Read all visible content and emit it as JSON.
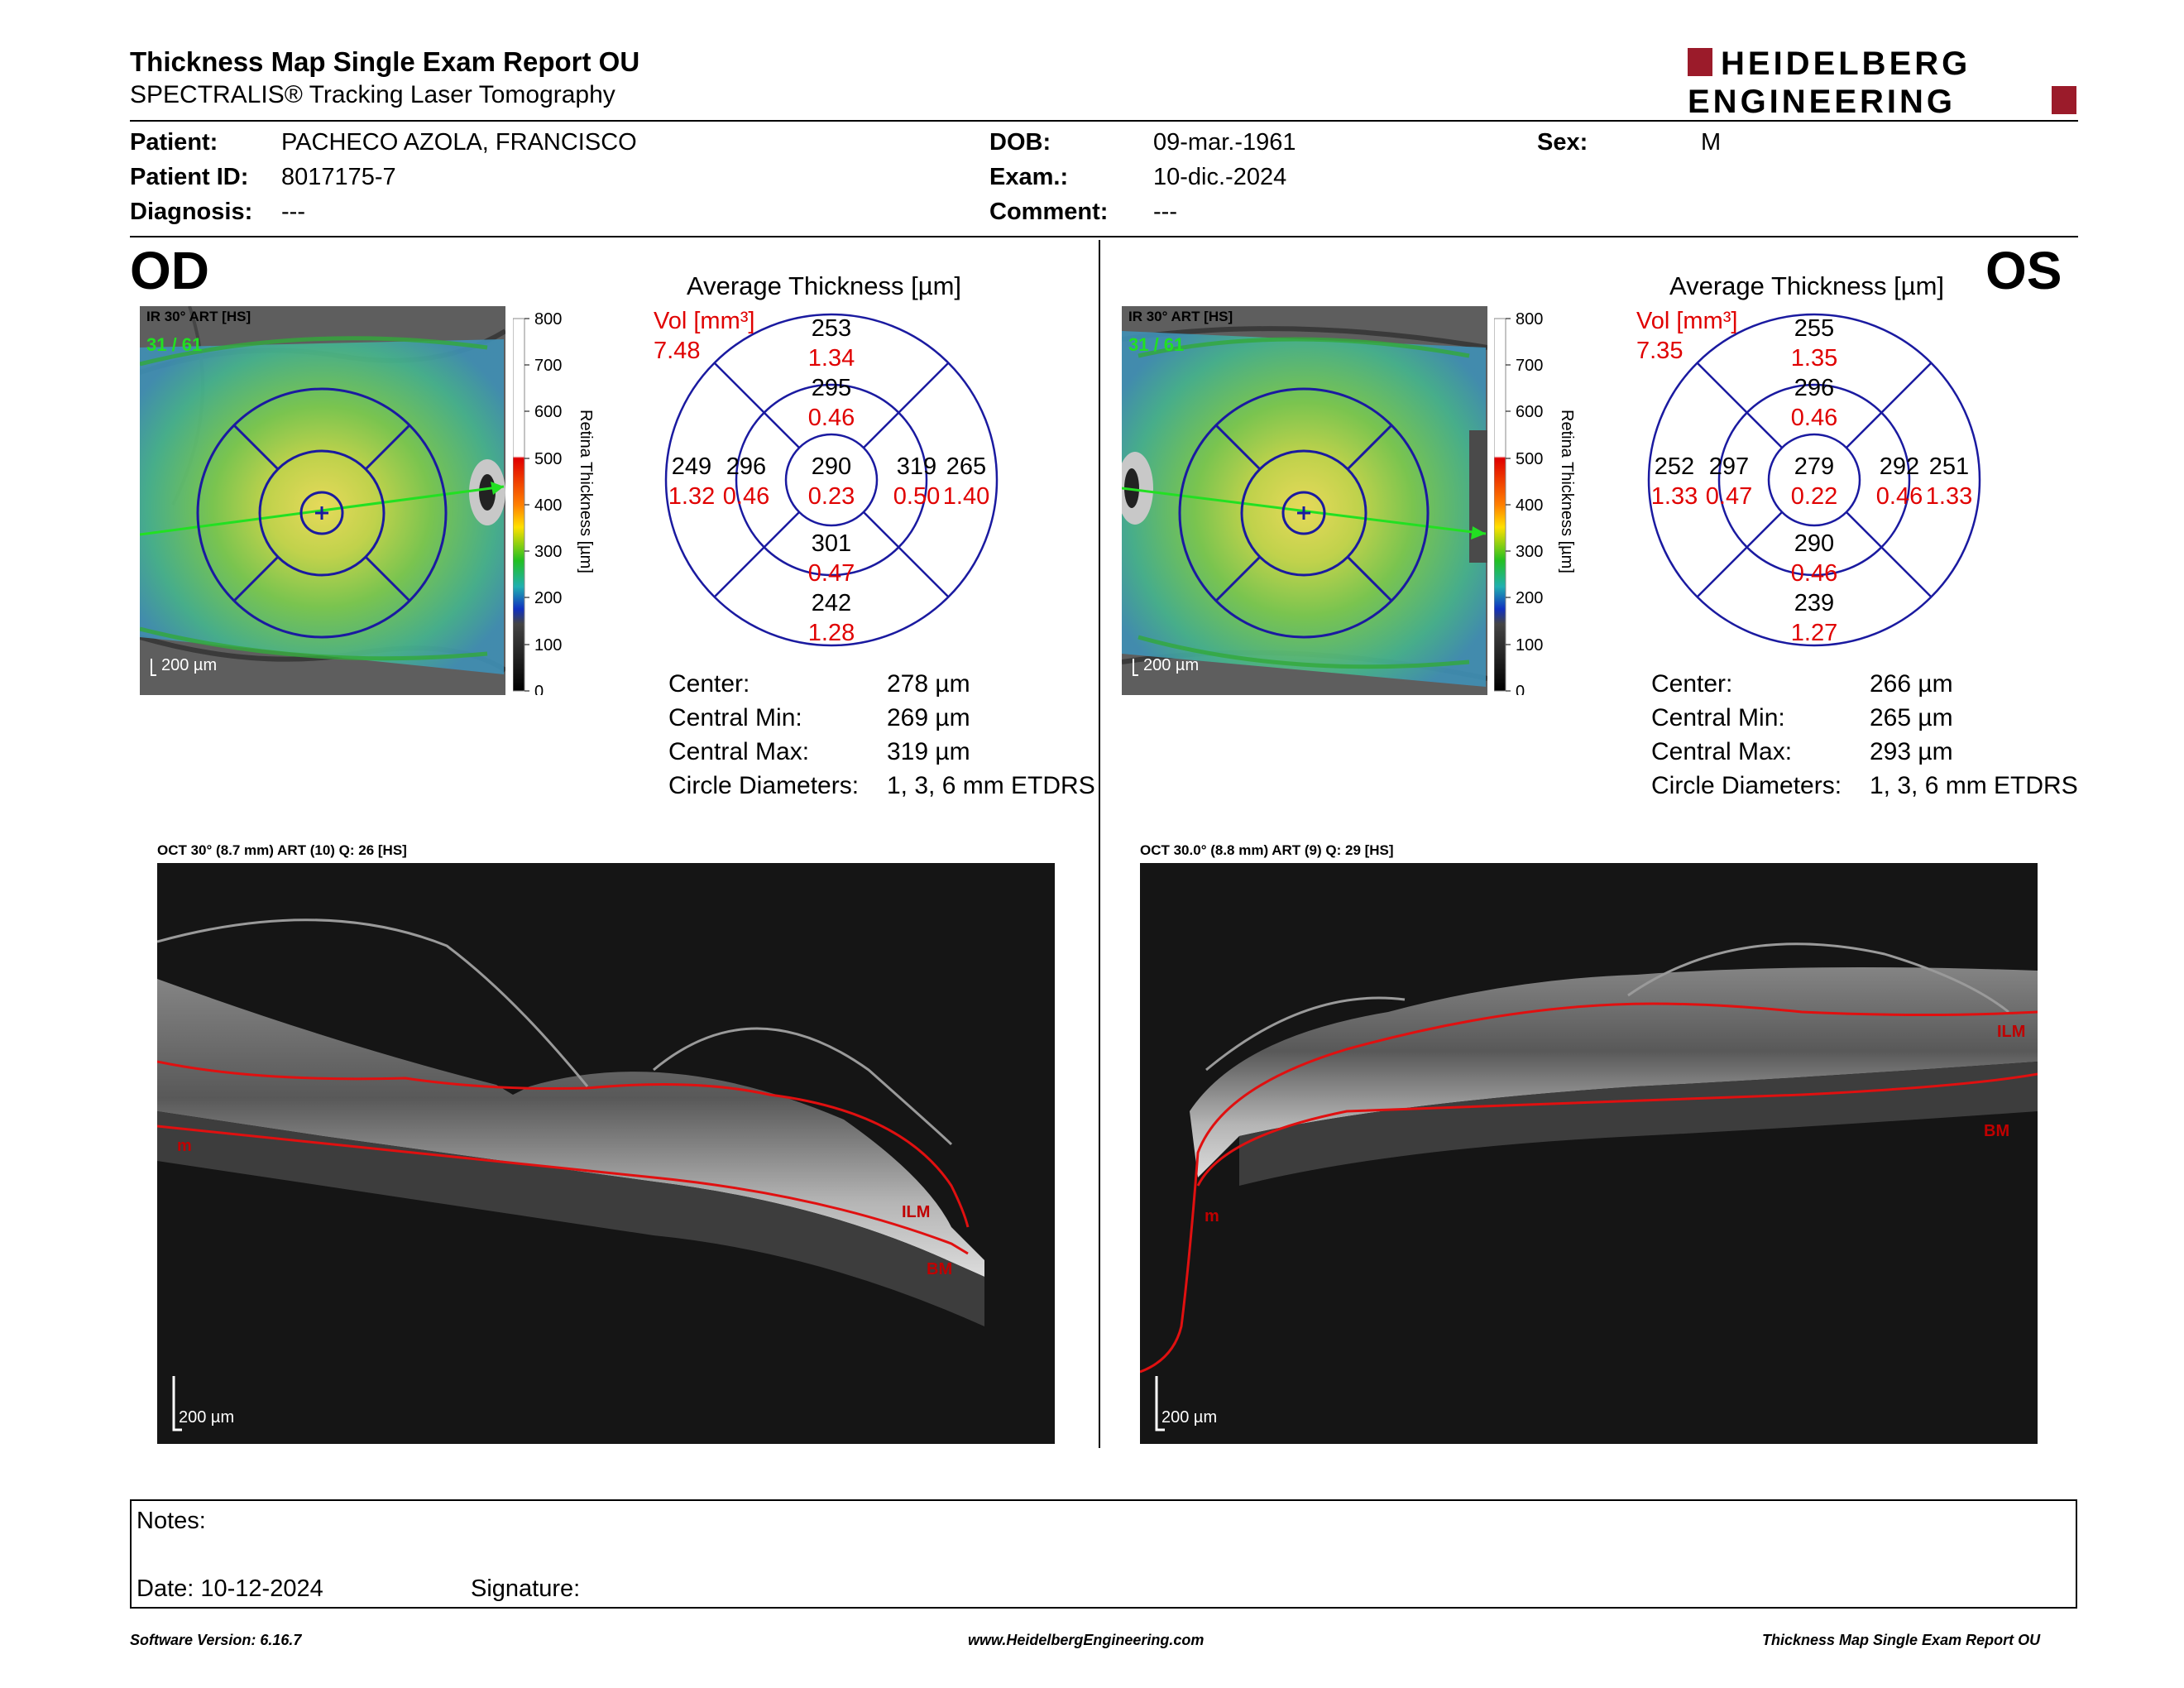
{
  "header": {
    "title": "Thickness Map Single Exam Report OU",
    "subtitle": "SPECTRALIS® Tracking Laser Tomography",
    "logo_line1": "HEIDELBERG",
    "logo_line2": "ENGINEERING"
  },
  "patient": {
    "patient_label": "Patient:",
    "patient_value": "PACHECO AZOLA, FRANCISCO",
    "id_label": "Patient ID:",
    "id_value": "8017175-7",
    "diagnosis_label": "Diagnosis:",
    "diagnosis_value": "---",
    "dob_label": "DOB:",
    "dob_value": "09-mar.-1961",
    "exam_label": "Exam.:",
    "exam_value": "10-dic.-2024",
    "comment_label": "Comment:",
    "comment_value": "---",
    "sex_label": "Sex:",
    "sex_value": "M"
  },
  "colorbar": {
    "ticks": [
      "800",
      "700",
      "600",
      "500",
      "400",
      "300",
      "200",
      "100",
      "0"
    ],
    "label": "Retina Thickness [µm]"
  },
  "od": {
    "eye": "OD",
    "ir_label": "IR 30° ART [HS]",
    "ir_counter": "31 / 61",
    "scale_label": "200 µm",
    "avg_title": "Average Thickness [µm]",
    "vol_label": "Vol [mm³]",
    "vol_value": "7.48",
    "grid": {
      "center": [
        "290",
        "0.23"
      ],
      "inner_top": [
        "295",
        "0.46"
      ],
      "inner_bottom": [
        "301",
        "0.47"
      ],
      "inner_left": [
        "296",
        "0.46"
      ],
      "inner_right": [
        "319",
        "0.50"
      ],
      "outer_top": [
        "253",
        "1.34"
      ],
      "outer_bottom": [
        "242",
        "1.28"
      ],
      "outer_left": [
        "249",
        "1.32"
      ],
      "outer_right": [
        "265",
        "1.40"
      ]
    },
    "stats": {
      "center_label": "Center:",
      "center_value": "278 µm",
      "min_label": "Central Min:",
      "min_value": "269 µm",
      "max_label": "Central Max:",
      "max_value": "319 µm",
      "diam_label": "Circle Diameters:",
      "diam_value": "1, 3, 6 mm ETDRS"
    },
    "oct_label": "OCT 30° (8.7 mm) ART (10) Q: 26 [HS]",
    "oct_scale": "200 µm",
    "ilm_label": "ILM",
    "bm_label": "BM",
    "m_label": "m"
  },
  "os": {
    "eye": "OS",
    "ir_label": "IR 30° ART [HS]",
    "ir_counter": "31 / 61",
    "scale_label": "200 µm",
    "avg_title": "Average Thickness [µm]",
    "vol_label": "Vol [mm³]",
    "vol_value": "7.35",
    "grid": {
      "center": [
        "279",
        "0.22"
      ],
      "inner_top": [
        "296",
        "0.46"
      ],
      "inner_bottom": [
        "290",
        "0.46"
      ],
      "inner_left": [
        "297",
        "0.47"
      ],
      "inner_right": [
        "292",
        "0.46"
      ],
      "outer_top": [
        "255",
        "1.35"
      ],
      "outer_bottom": [
        "239",
        "1.27"
      ],
      "outer_left": [
        "252",
        "1.33"
      ],
      "outer_right": [
        "251",
        "1.33"
      ]
    },
    "stats": {
      "center_label": "Center:",
      "center_value": "266 µm",
      "min_label": "Central Min:",
      "min_value": "265 µm",
      "max_label": "Central Max:",
      "max_value": "293 µm",
      "diam_label": "Circle Diameters:",
      "diam_value": "1, 3, 6 mm ETDRS"
    },
    "oct_label": "OCT 30.0° (8.8 mm) ART (9) Q: 29 [HS]",
    "oct_scale": "200 µm",
    "ilm_label": "ILM",
    "bm_label": "BM",
    "m_label": "m"
  },
  "notes": {
    "notes_label": "Notes:",
    "date_label": "Date: 10-12-2024",
    "signature_label": "Signature:"
  },
  "footer": {
    "left": "Software Version: 6.16.7",
    "center": "www.HeidelbergEngineering.com",
    "right": "Thickness Map Single Exam Report OU"
  },
  "colors": {
    "grid_blue": "#1a1aa0",
    "volume_red": "#e00000",
    "segmentation_red": "#e01010",
    "logo_red": "#9b1b2a"
  }
}
